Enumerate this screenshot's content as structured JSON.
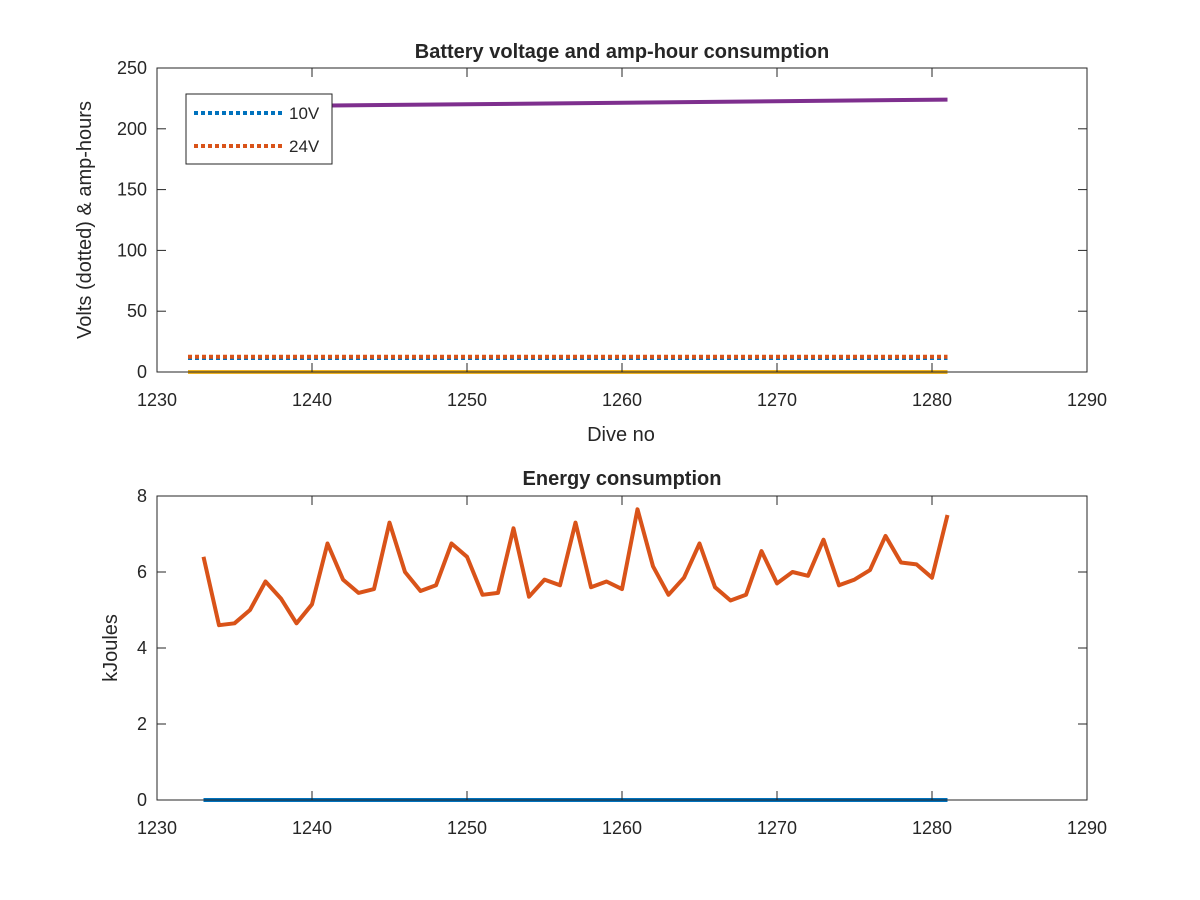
{
  "chart_data": [
    {
      "type": "line",
      "title": "Battery voltage and amp-hour consumption",
      "xlabel": "Dive no",
      "ylabel": "Volts (dotted) & amp-hours",
      "xlim": [
        1230,
        1290
      ],
      "ylim": [
        0,
        250
      ],
      "xticks": [
        1230,
        1240,
        1250,
        1260,
        1270,
        1280,
        1290
      ],
      "yticks": [
        0,
        50,
        100,
        150,
        200,
        250
      ],
      "grid": false,
      "legend_position": "top-left",
      "series": [
        {
          "name": "10V",
          "color": "#0072BD",
          "style": "dotted",
          "x": [
            1232,
            1281
          ],
          "y": [
            11.5,
            11.5
          ]
        },
        {
          "name": "24V",
          "color": "#D95319",
          "style": "dotted",
          "x": [
            1232,
            1281
          ],
          "y": [
            12.5,
            12.5
          ]
        },
        {
          "color": "#7E2F8E",
          "style": "solid",
          "x": [
            1232,
            1281
          ],
          "y": [
            218,
            224
          ]
        },
        {
          "color": "#EDB120",
          "style": "solid",
          "x": [
            1232,
            1281
          ],
          "y": [
            0,
            0
          ]
        }
      ]
    },
    {
      "type": "line",
      "title": "Energy consumption",
      "xlabel": "",
      "ylabel": "kJoules",
      "xlim": [
        1230,
        1290
      ],
      "ylim": [
        0,
        8
      ],
      "xticks": [
        1230,
        1240,
        1250,
        1260,
        1270,
        1280,
        1290
      ],
      "yticks": [
        0,
        2,
        4,
        6,
        8
      ],
      "grid": false,
      "series": [
        {
          "color": "#0072BD",
          "style": "solid",
          "x": [
            1233,
            1281
          ],
          "y": [
            0,
            0
          ]
        },
        {
          "color": "#D95319",
          "style": "solid",
          "x": [
            1233,
            1234,
            1235,
            1236,
            1237,
            1238,
            1239,
            1240,
            1241,
            1242,
            1243,
            1244,
            1245,
            1246,
            1247,
            1248,
            1249,
            1250,
            1251,
            1252,
            1253,
            1254,
            1255,
            1256,
            1257,
            1258,
            1259,
            1260,
            1261,
            1262,
            1263,
            1264,
            1265,
            1266,
            1267,
            1268,
            1269,
            1270,
            1271,
            1272,
            1273,
            1274,
            1275,
            1276,
            1277,
            1278,
            1279,
            1280,
            1281
          ],
          "y": [
            6.4,
            4.6,
            4.65,
            5.0,
            5.75,
            5.3,
            4.65,
            5.15,
            6.75,
            5.8,
            5.45,
            5.55,
            7.3,
            6.0,
            5.5,
            5.65,
            6.75,
            6.4,
            5.4,
            5.45,
            7.15,
            5.35,
            5.8,
            5.65,
            7.3,
            5.6,
            5.75,
            5.55,
            7.65,
            6.15,
            5.4,
            5.85,
            6.75,
            5.6,
            5.25,
            5.4,
            6.55,
            5.7,
            6.0,
            5.9,
            6.85,
            5.65,
            5.8,
            6.05,
            6.95,
            6.25,
            6.2,
            5.85,
            7.5
          ]
        }
      ]
    }
  ]
}
